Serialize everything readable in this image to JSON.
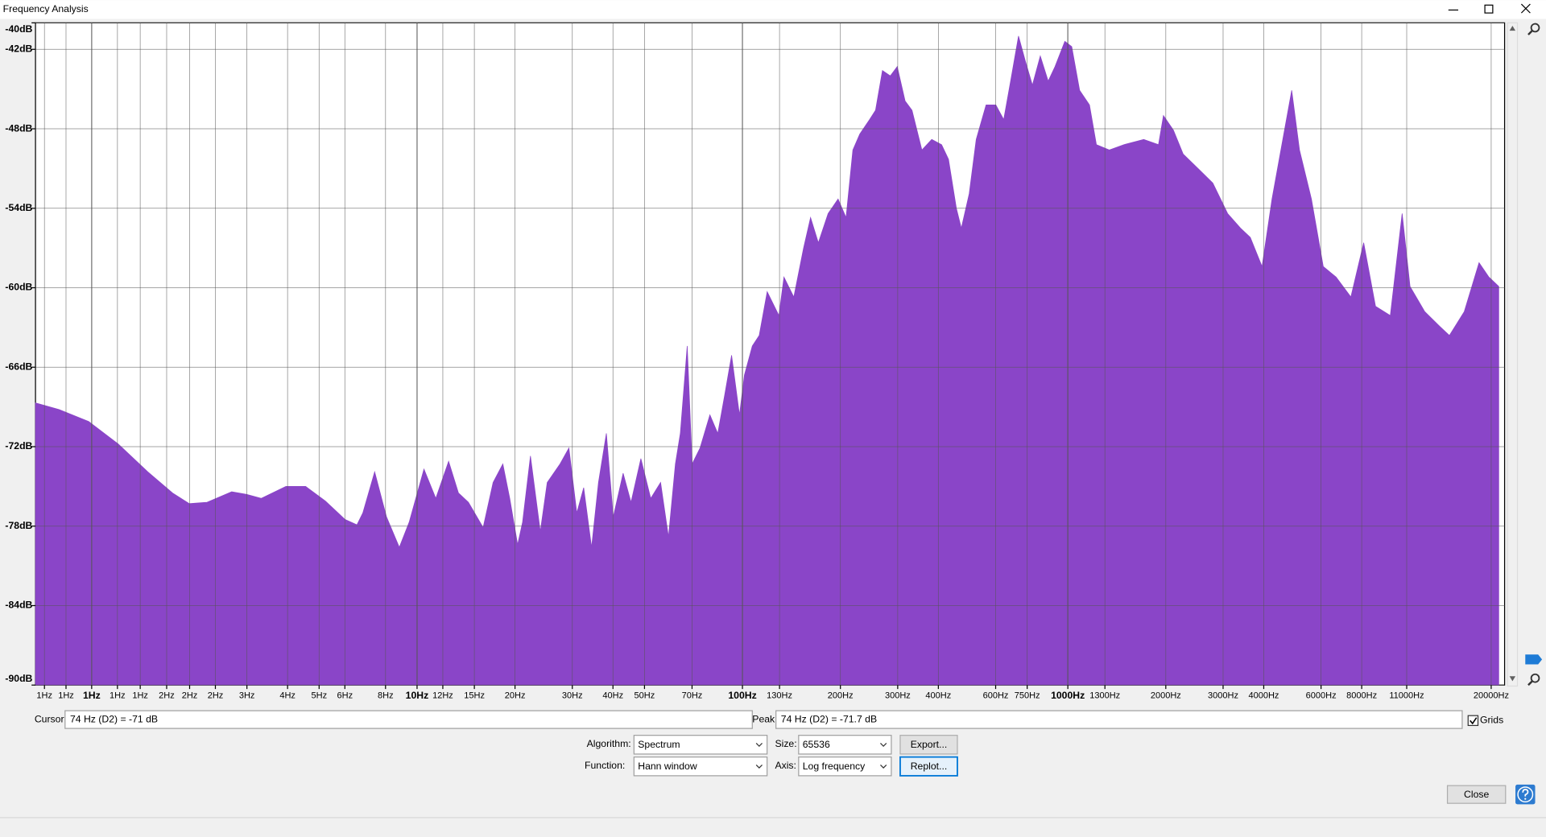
{
  "window": {
    "title": "Frequency Analysis",
    "cursor_label": "Cursor:",
    "cursor_value": "74 Hz (D2) = -71 dB",
    "peak_label": "Peak:",
    "peak_value": "74 Hz (D2) = -71.7 dB",
    "grids_label": "Grids",
    "algorithm_label": "Algorithm:",
    "algorithm_value": "Spectrum",
    "size_label": "Size:",
    "size_value": "65536",
    "export_button": "Export...",
    "function_label": "Function:",
    "function_value": "Hann window",
    "axis_label": "Axis:",
    "axis_value": "Log frequency",
    "replot_button": "Replot...",
    "close_button": "Close"
  },
  "chart_data": {
    "type": "area",
    "color": "#8a45c8",
    "log_x": true,
    "grid": true,
    "xlim": [
      0.672,
      21990
    ],
    "ylim": [
      -90,
      -40
    ],
    "xticks": [
      {
        "value": 0.716,
        "label": "1Hz"
      },
      {
        "value": 0.834,
        "label": "1Hz"
      },
      {
        "value": 1,
        "label": "1Hz"
      },
      {
        "value": 1.2,
        "label": "1Hz"
      },
      {
        "value": 1.41,
        "label": "1Hz"
      },
      {
        "value": 1.7,
        "label": "2Hz"
      },
      {
        "value": 2,
        "label": "2Hz"
      },
      {
        "value": 2.4,
        "label": "2Hz"
      },
      {
        "value": 3,
        "label": "3Hz"
      },
      {
        "value": 4,
        "label": "4Hz"
      },
      {
        "value": 5,
        "label": "5Hz"
      },
      {
        "value": 6,
        "label": "6Hz"
      },
      {
        "value": 8,
        "label": "8Hz"
      },
      {
        "value": 10,
        "label": "10Hz"
      },
      {
        "value": 12,
        "label": "12Hz"
      },
      {
        "value": 15,
        "label": "15Hz"
      },
      {
        "value": 20,
        "label": "20Hz"
      },
      {
        "value": 30,
        "label": "30Hz"
      },
      {
        "value": 40,
        "label": "40Hz"
      },
      {
        "value": 50,
        "label": "50Hz"
      },
      {
        "value": 70,
        "label": "70Hz"
      },
      {
        "value": 100,
        "label": "100Hz"
      },
      {
        "value": 130,
        "label": "130Hz"
      },
      {
        "value": 200,
        "label": "200Hz"
      },
      {
        "value": 300,
        "label": "300Hz"
      },
      {
        "value": 400,
        "label": "400Hz"
      },
      {
        "value": 600,
        "label": "600Hz"
      },
      {
        "value": 750,
        "label": "750Hz"
      },
      {
        "value": 1000,
        "label": "1000Hz"
      },
      {
        "value": 1300,
        "label": "1300Hz"
      },
      {
        "value": 2000,
        "label": "2000Hz"
      },
      {
        "value": 3000,
        "label": "3000Hz"
      },
      {
        "value": 4000,
        "label": "4000Hz"
      },
      {
        "value": 6000,
        "label": "6000Hz"
      },
      {
        "value": 8000,
        "label": "8000Hz"
      },
      {
        "value": 11000,
        "label": "11000Hz"
      },
      {
        "value": 20000,
        "label": "20000Hz"
      }
    ],
    "yticks": [
      {
        "value": -40,
        "label": "-40dB"
      },
      {
        "value": -42,
        "label": "-42dB"
      },
      {
        "value": -48,
        "label": "-48dB"
      },
      {
        "value": -54,
        "label": "-54dB"
      },
      {
        "value": -60,
        "label": "-60dB"
      },
      {
        "value": -66,
        "label": "-66dB"
      },
      {
        "value": -72,
        "label": "-72dB"
      },
      {
        "value": -78,
        "label": "-78dB"
      },
      {
        "value": -84,
        "label": "-84dB"
      },
      {
        "value": -90,
        "label": "-90dB"
      }
    ],
    "x": [
      0.672,
      0.794,
      0.979,
      1.207,
      1.488,
      1.772,
      1.995,
      2.262,
      2.694,
      2.99,
      3.32,
      3.953,
      4.546,
      5.226,
      6.009,
      6.535,
      6.813,
      7.408,
      8.055,
      8.821,
      9.458,
      10.5,
      11.42,
      12.5,
      13.41,
      14.38,
      15.96,
      17.12,
      18.35,
      19.27,
      20.38,
      21.1,
      22.31,
      23.92,
      25.12,
      27.5,
      29.29,
      30.97,
      32.51,
      34.38,
      36.11,
      38.18,
      40.09,
      42.99,
      45.46,
      48.74,
      52.26,
      56.04,
      59.25,
      62.22,
      64.43,
      67.65,
      70.06,
      74.08,
      79.43,
      84.0,
      88.21,
      92.62,
      97.93,
      101.4,
      107.2,
      112.6,
      119.1,
      129.4,
      134.1,
      143.8,
      154.1,
      161.9,
      171.1,
      183.4,
      196.8,
      208.1,
      218.5,
      229.4,
      246.0,
      256.5,
      269.3,
      284.8,
      299.1,
      316.2,
      332.1,
      356.0,
      381.8,
      409.4,
      429.9,
      454.6,
      470.7,
      497.7,
      522.7,
      560.5,
      600.9,
      635.3,
      667.2,
      705.5,
      740.7,
      778.0,
      822.7,
      869.9,
      913.1,
      979.3,
      1028,
      1087,
      1166,
      1224,
      1341,
      1488,
      1711,
      1900,
      1967,
      2110,
      2262,
      2512,
      2790,
      3097,
      3391,
      3636,
      3953,
      4240,
      4546,
      4874,
      5153,
      5605,
      6095,
      6672,
      7408,
      8114,
      8821,
      9793,
      10650,
      11260,
      12500,
      13880,
      14880,
      16530,
      18350,
      19680,
      21100
    ],
    "values": [
      -68.7,
      -69.2,
      -70.1,
      -71.8,
      -73.9,
      -75.5,
      -76.3,
      -76.2,
      -75.4,
      -75.6,
      -75.9,
      -75.0,
      -75.0,
      -76.1,
      -77.5,
      -77.9,
      -77.0,
      -73.9,
      -77.3,
      -79.6,
      -77.7,
      -73.7,
      -75.9,
      -73.1,
      -75.5,
      -76.2,
      -78.1,
      -74.7,
      -73.3,
      -75.9,
      -79.4,
      -77.7,
      -72.7,
      -78.4,
      -74.7,
      -73.3,
      -72.1,
      -77.0,
      -75.1,
      -79.6,
      -74.7,
      -71.0,
      -77.3,
      -74.0,
      -76.2,
      -72.9,
      -75.9,
      -74.7,
      -78.8,
      -73.3,
      -71.0,
      -64.4,
      -73.3,
      -72.1,
      -69.6,
      -71.0,
      -68.1,
      -65.1,
      -69.6,
      -66.6,
      -64.4,
      -63.6,
      -60.3,
      -62.1,
      -59.2,
      -60.7,
      -57.0,
      -54.7,
      -56.6,
      -54.4,
      -53.3,
      -54.7,
      -49.6,
      -48.4,
      -47.3,
      -46.6,
      -43.6,
      -44.0,
      -43.3,
      -45.9,
      -46.6,
      -49.6,
      -48.8,
      -49.2,
      -50.3,
      -54.0,
      -55.5,
      -52.9,
      -48.8,
      -46.2,
      -46.2,
      -47.3,
      -44.4,
      -41.0,
      -42.9,
      -44.7,
      -42.5,
      -44.4,
      -43.3,
      -41.4,
      -41.8,
      -45.1,
      -46.2,
      -49.2,
      -49.6,
      -49.2,
      -48.8,
      -49.2,
      -47.0,
      -48.1,
      -49.9,
      -51.0,
      -52.1,
      -54.4,
      -55.5,
      -56.2,
      -58.4,
      -53.3,
      -49.2,
      -45.1,
      -49.6,
      -53.3,
      -58.4,
      -59.2,
      -60.7,
      -56.6,
      -61.4,
      -62.1,
      -54.4,
      -59.9,
      -61.8,
      -62.9,
      -63.6,
      -61.8,
      -58.1,
      -59.2,
      -59.9
    ]
  }
}
